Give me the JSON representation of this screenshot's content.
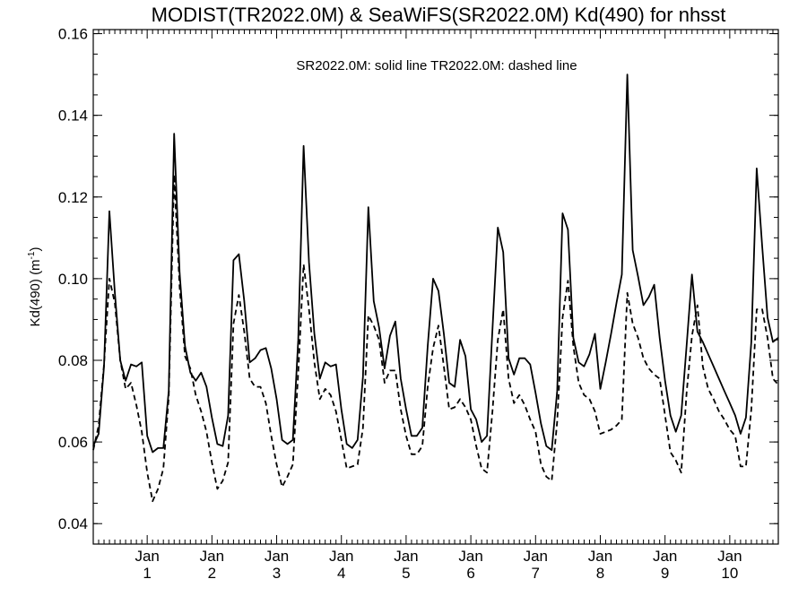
{
  "chart_data": {
    "type": "line",
    "title": "MODIST(TR2022.0M) & SeaWiFS(SR2022.0M)  Kd(490) for nhsst",
    "ylabel": "Kd(490) (m",
    "ylabel_sup": "-1",
    "ylabel_close": ")",
    "annotation": "SR2022.0M: solid line   TR2022.0M: dashed line",
    "xlim": [
      0,
      127
    ],
    "ylim": [
      0.035,
      0.161
    ],
    "yticks": [
      0.04,
      0.06,
      0.08,
      0.1,
      0.12,
      0.14,
      0.16
    ],
    "ytick_labels": [
      "0.04",
      "0.06",
      "0.08",
      "0.10",
      "0.12",
      "0.14",
      "0.16"
    ],
    "xtick_positions": [
      10,
      22,
      34,
      46,
      58,
      70,
      82,
      94,
      106,
      118
    ],
    "xtick_month_label": "Jan",
    "xtick_year_labels": [
      "1",
      "2",
      "3",
      "4",
      "5",
      "6",
      "7",
      "8",
      "9",
      "10"
    ],
    "grid": false,
    "series": [
      {
        "name": "SR2022.0M",
        "style": "solid",
        "color": "#000000",
        "x": [
          0,
          1,
          2,
          3,
          4,
          5,
          6,
          7,
          8,
          9,
          10,
          11,
          12,
          13,
          14,
          15,
          16,
          17,
          18,
          19,
          20,
          21,
          22,
          23,
          24,
          25,
          26,
          27,
          28,
          29,
          30,
          31,
          32,
          33,
          34,
          35,
          36,
          37,
          38,
          39,
          40,
          41,
          42,
          43,
          44,
          45,
          46,
          47,
          48,
          49,
          50,
          51,
          52,
          53,
          54,
          55,
          56,
          57,
          58,
          59,
          60,
          61,
          62,
          63,
          64,
          65,
          66,
          67,
          68,
          69,
          70,
          71,
          72,
          73,
          74,
          75,
          76,
          77,
          78,
          79,
          80,
          81,
          82,
          83,
          84,
          85,
          86,
          87,
          88,
          89,
          90,
          91,
          92,
          93,
          94,
          95,
          96,
          97,
          98,
          99,
          100,
          101,
          102,
          103,
          104,
          105,
          106,
          107,
          108,
          109,
          110,
          111,
          112,
          113,
          114,
          115,
          116,
          117,
          118,
          119,
          120,
          121,
          122,
          123,
          124,
          125,
          126,
          127
        ],
        "values": [
          0.059,
          0.062,
          0.0785,
          0.1165,
          0.0965,
          0.08,
          0.075,
          0.079,
          0.0785,
          0.0795,
          0.0615,
          0.0575,
          0.0585,
          0.0585,
          0.0725,
          0.1355,
          0.1015,
          0.0835,
          0.077,
          0.075,
          0.077,
          0.0735,
          0.066,
          0.0595,
          0.059,
          0.0665,
          0.1045,
          0.106,
          0.0945,
          0.0795,
          0.0805,
          0.0825,
          0.083,
          0.078,
          0.0705,
          0.0605,
          0.0595,
          0.0605,
          0.085,
          0.1325,
          0.104,
          0.0865,
          0.0755,
          0.0795,
          0.0785,
          0.079,
          0.068,
          0.0595,
          0.0585,
          0.0605,
          0.076,
          0.1175,
          0.0945,
          0.088,
          0.078,
          0.086,
          0.0895,
          0.0755,
          0.068,
          0.0615,
          0.0615,
          0.0635,
          0.0835,
          0.1,
          0.097,
          0.0865,
          0.0745,
          0.0735,
          0.085,
          0.081,
          0.068,
          0.0655,
          0.06,
          0.0615,
          0.0875,
          0.1125,
          0.1065,
          0.0805,
          0.0765,
          0.0805,
          0.0805,
          0.079,
          0.072,
          0.0645,
          0.059,
          0.058,
          0.0725,
          0.116,
          0.112,
          0.0855,
          0.0795,
          0.0785,
          0.0815,
          0.0865,
          0.073,
          0.0795,
          0.0865,
          0.094,
          0.101,
          0.15,
          0.107,
          0.1005,
          0.0935,
          0.0955,
          0.0985,
          0.0855,
          0.075,
          0.0665,
          0.0625,
          0.0665,
          0.0835,
          0.101,
          0.087,
          0.0845,
          0.0815,
          0.0785,
          0.0755,
          0.0725,
          0.0695,
          0.0665,
          0.062,
          0.066,
          0.0845,
          0.127,
          0.108,
          0.0905,
          0.0845,
          0.0855
        ]
      },
      {
        "name": "TR2022.0M",
        "style": "dashed",
        "color": "#000000",
        "x": [
          0,
          1,
          2,
          3,
          4,
          5,
          6,
          7,
          8,
          9,
          10,
          11,
          12,
          13,
          14,
          15,
          16,
          17,
          18,
          19,
          20,
          21,
          22,
          23,
          24,
          25,
          26,
          27,
          28,
          29,
          30,
          31,
          32,
          33,
          34,
          35,
          36,
          37,
          38,
          39,
          40,
          41,
          42,
          43,
          44,
          45,
          46,
          47,
          48,
          49,
          50,
          51,
          52,
          53,
          54,
          55,
          56,
          57,
          58,
          59,
          60,
          61,
          62,
          63,
          64,
          65,
          66,
          67,
          68,
          69,
          70,
          71,
          72,
          73,
          74,
          75,
          76,
          77,
          78,
          79,
          80,
          81,
          82,
          83,
          84,
          85,
          86,
          87,
          88,
          89,
          90,
          91,
          92,
          93,
          94,
          95,
          96,
          97,
          98,
          99,
          100,
          101,
          102,
          103,
          104,
          105,
          106,
          107,
          108,
          109,
          110,
          111,
          112,
          113,
          114,
          115,
          116,
          117,
          118,
          119,
          120,
          121,
          122,
          123,
          124,
          125,
          126,
          127
        ],
        "values": [
          0.058,
          0.064,
          0.079,
          0.1,
          0.094,
          0.08,
          0.073,
          0.0745,
          0.069,
          0.0625,
          0.0525,
          0.0455,
          0.0485,
          0.0535,
          0.071,
          0.1255,
          0.098,
          0.081,
          0.078,
          0.0715,
          0.0675,
          0.0625,
          0.055,
          0.0485,
          0.0505,
          0.055,
          0.089,
          0.096,
          0.087,
          0.0755,
          0.0735,
          0.0735,
          0.0695,
          0.0615,
          0.0545,
          0.049,
          0.0515,
          0.0545,
          0.077,
          0.1035,
          0.0925,
          0.0795,
          0.0705,
          0.073,
          0.0715,
          0.0675,
          0.0605,
          0.0535,
          0.054,
          0.0545,
          0.0635,
          0.091,
          0.0885,
          0.085,
          0.0745,
          0.0775,
          0.0775,
          0.068,
          0.0615,
          0.057,
          0.057,
          0.059,
          0.0735,
          0.083,
          0.0885,
          0.0785,
          0.068,
          0.0685,
          0.0705,
          0.0685,
          0.0655,
          0.059,
          0.0535,
          0.0525,
          0.0675,
          0.085,
          0.0925,
          0.0755,
          0.0695,
          0.0715,
          0.069,
          0.0655,
          0.0625,
          0.0545,
          0.0515,
          0.0505,
          0.065,
          0.0905,
          0.0995,
          0.0835,
          0.0745,
          0.0715,
          0.0705,
          0.0675,
          0.062,
          0.0625,
          0.063,
          0.064,
          0.0655,
          0.0965,
          0.089,
          0.0855,
          0.0805,
          0.078,
          0.0765,
          0.0755,
          0.0665,
          0.0575,
          0.0555,
          0.0525,
          0.072,
          0.086,
          0.0935,
          0.0785,
          0.073,
          0.0705,
          0.0675,
          0.0655,
          0.063,
          0.0615,
          0.054,
          0.054,
          0.068,
          0.0925,
          0.0925,
          0.0855,
          0.0755,
          0.074
        ]
      }
    ]
  }
}
